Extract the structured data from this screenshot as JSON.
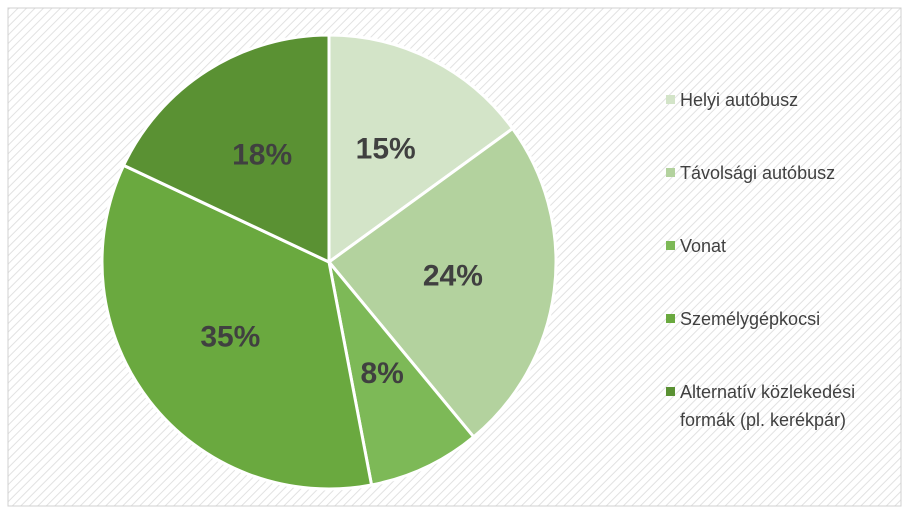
{
  "chart_data": {
    "type": "pie",
    "categories": [
      "Helyi autóbusz",
      "Távolsági autóbusz",
      "Vonat",
      "Személygépkocsi",
      "Alternatív közlekedési formák (pl. kerékpár)"
    ],
    "values": [
      15,
      24,
      8,
      35,
      18
    ],
    "value_labels": [
      "15%",
      "24%",
      "8%",
      "35%",
      "18%"
    ],
    "colors": [
      "#d3e4c8",
      "#b3d29e",
      "#7db957",
      "#6aa93f",
      "#5a9133"
    ],
    "legend": "right"
  }
}
